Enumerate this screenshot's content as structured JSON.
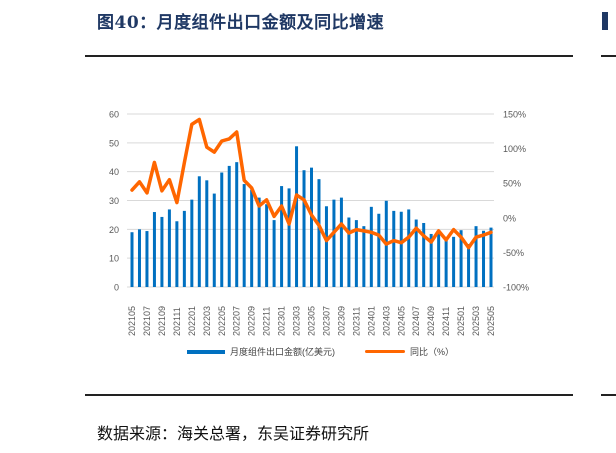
{
  "figure": {
    "title": "图40：月度组件出口金额及同比增速",
    "source": "数据来源：海关总署，东吴证券研究所"
  },
  "colors": {
    "bar": "#0070c0",
    "line": "#ff6600",
    "grid": "#d9d9d9",
    "axis_text": "#595959",
    "title": "#1f3864"
  },
  "legend": {
    "bar_label": "月度组件出口金额(亿美元)",
    "line_label": "同比（%）"
  },
  "chart_data": {
    "type": "bar+line",
    "title": "月度组件出口金额及同比增速",
    "xlabel": "",
    "ylabel_left": "亿美元",
    "ylabel_right": "%",
    "ylim_left": [
      0,
      60
    ],
    "ylim_right": [
      -100,
      150
    ],
    "yticks_left": [
      "0",
      "10",
      "20",
      "30",
      "40",
      "50",
      "60"
    ],
    "yticks_right": [
      "-100%",
      "-50%",
      "0%",
      "50%",
      "100%",
      "150%"
    ],
    "grid": true,
    "legend_position": "bottom",
    "categories": [
      "202105",
      "202106",
      "202107",
      "202108",
      "202109",
      "202110",
      "202111",
      "202112",
      "202201",
      "202202",
      "202203",
      "202204",
      "202205",
      "202206",
      "202207",
      "202208",
      "202209",
      "202210",
      "202211",
      "202212",
      "202301",
      "202302",
      "202303",
      "202304",
      "202305",
      "202306",
      "202307",
      "202308",
      "202309",
      "202310",
      "202311",
      "202312",
      "202401",
      "202402",
      "202403",
      "202404",
      "202405",
      "202406",
      "202407",
      "202408",
      "202409",
      "202410",
      "202411",
      "202412",
      "202501",
      "202502",
      "202503",
      "202504",
      "202505"
    ],
    "xtick_labels": [
      "202105",
      "202107",
      "202109",
      "202111",
      "202201",
      "202203",
      "202205",
      "202207",
      "202209",
      "202211",
      "202301",
      "202303",
      "202305",
      "202307",
      "202309",
      "202311",
      "202401",
      "202403",
      "202405",
      "202407",
      "202409",
      "202411",
      "202501",
      "202503",
      "202505"
    ],
    "series": [
      {
        "name": "月度组件出口金额(亿美元)",
        "type": "bar",
        "axis": "left",
        "values": [
          19.0,
          20.0,
          19.4,
          26.0,
          24.3,
          26.9,
          22.8,
          26.4,
          30.3,
          38.4,
          37.0,
          32.4,
          39.7,
          42.0,
          43.3,
          35.7,
          33.8,
          31.0,
          28.7,
          23.2,
          35.0,
          34.2,
          48.8,
          40.5,
          41.4,
          37.4,
          28.0,
          30.3,
          31.0,
          24.1,
          23.2,
          21.1,
          27.8,
          25.4,
          29.9,
          26.4,
          26.1,
          26.9,
          23.4,
          22.2,
          18.4,
          19.1,
          16.8,
          17.4,
          19.7,
          14.9,
          21.1,
          19.5,
          20.6
        ]
      },
      {
        "name": "同比（%）",
        "type": "line",
        "axis": "right",
        "values": [
          40,
          52,
          36,
          80,
          39,
          55,
          22,
          80,
          135,
          142,
          102,
          95,
          111,
          114,
          124,
          54,
          43,
          17,
          26,
          2,
          17,
          -9,
          33,
          26,
          4,
          -11,
          -33,
          -21,
          -9,
          -22,
          -17,
          -19,
          -21,
          -25,
          -38,
          -33,
          -36,
          -28,
          -15,
          -26,
          -35,
          -19,
          -32,
          -17,
          -28,
          -43,
          -28,
          -25,
          -21
        ]
      }
    ]
  }
}
